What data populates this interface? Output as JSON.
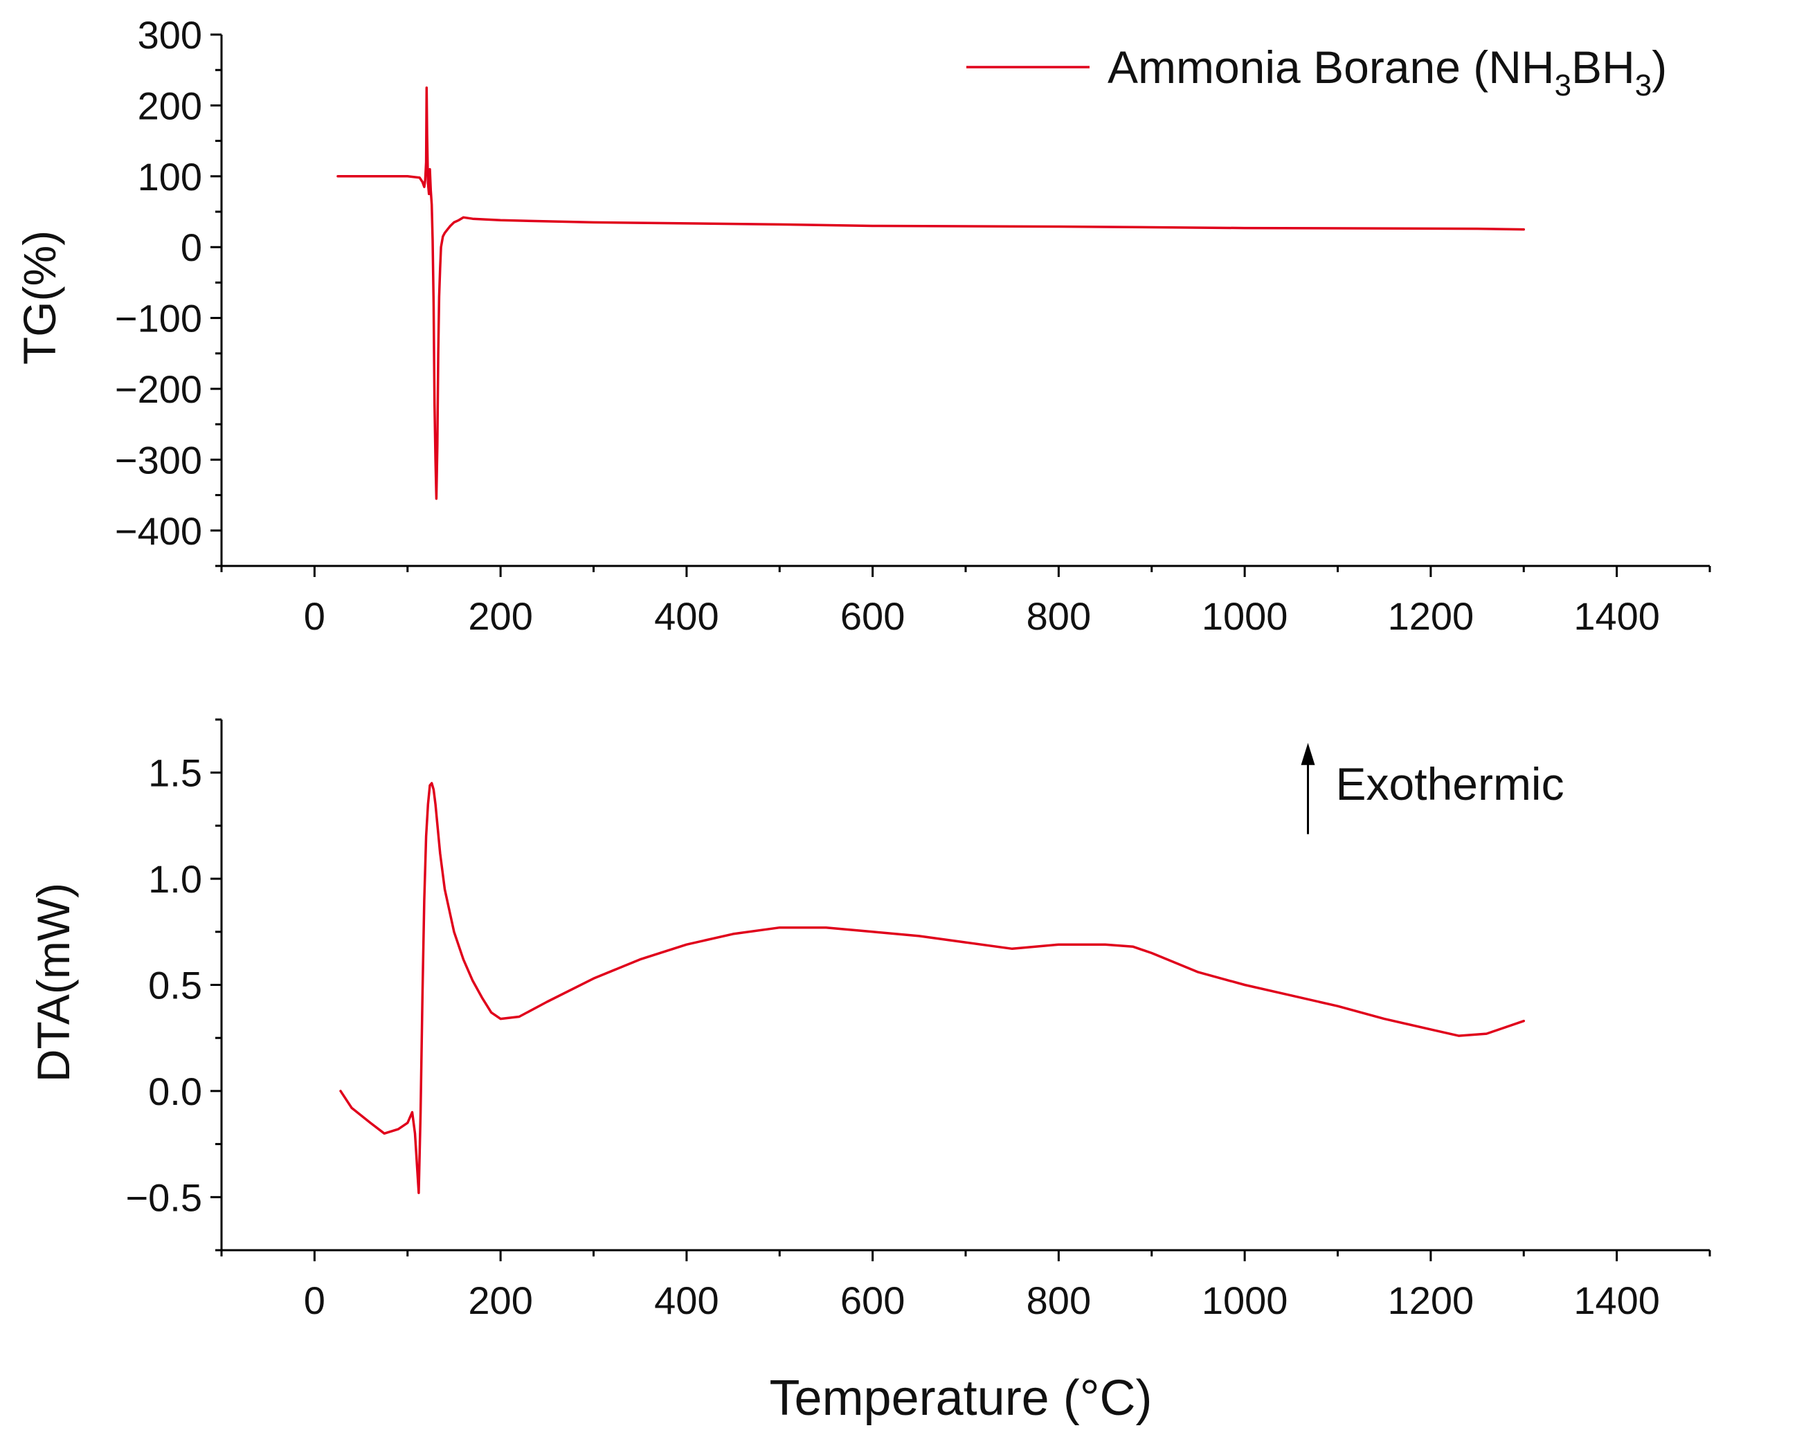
{
  "colors": {
    "series": "#e0001b",
    "axis": "#000000",
    "text": "#111111"
  },
  "chart_data": [
    {
      "type": "line",
      "panel": "top",
      "ylabel": "TG(%)",
      "xlim": [
        -100,
        1500
      ],
      "ylim": [
        -450,
        300
      ],
      "xticks": [
        0,
        200,
        400,
        600,
        800,
        1000,
        1200,
        1400
      ],
      "xtick_labels": [
        "0",
        "200",
        "400",
        "600",
        "800",
        "1000",
        "1200",
        "1400"
      ],
      "xminor": [
        -100,
        100,
        300,
        500,
        700,
        900,
        1100,
        1300,
        1500
      ],
      "yticks": [
        -400,
        -300,
        -200,
        -100,
        0,
        100,
        200,
        300
      ],
      "ytick_labels": [
        "−400",
        "−300",
        "−200",
        "−100",
        "0",
        "100",
        "200",
        "300"
      ],
      "yminor": [
        -450,
        -350,
        -250,
        -150,
        -50,
        50,
        150,
        250
      ],
      "legend_position": "top-right",
      "series": [
        {
          "name_main": "Ammonia Borane (NH",
          "name_sub1": "3",
          "name_mid": "BH",
          "name_sub2": "3",
          "name_end": ")",
          "x": [
            25,
            100,
            113,
            116,
            118,
            119,
            120,
            120.5,
            121,
            122,
            123,
            124,
            125,
            126,
            127,
            128,
            129,
            130,
            131,
            132,
            133,
            134,
            135,
            136,
            138,
            140,
            143,
            146,
            150,
            155,
            160,
            170,
            200,
            300,
            500,
            600,
            800,
            900,
            1000,
            1250,
            1300
          ],
          "y": [
            100,
            100,
            98,
            92,
            85,
            95,
            120,
            225,
            160,
            90,
            75,
            110,
            80,
            60,
            10,
            -80,
            -220,
            -300,
            -355,
            -280,
            -150,
            -70,
            -30,
            0,
            15,
            20,
            25,
            30,
            35,
            38,
            42,
            40,
            38,
            35,
            32,
            30,
            29,
            28,
            27,
            26,
            25
          ]
        }
      ]
    },
    {
      "type": "line",
      "panel": "bottom",
      "xlabel": "Temperature (°C)",
      "ylabel": "DTA(mW)",
      "xlim": [
        -100,
        1500
      ],
      "ylim": [
        -0.75,
        1.75
      ],
      "xticks": [
        0,
        200,
        400,
        600,
        800,
        1000,
        1200,
        1400
      ],
      "xtick_labels": [
        "0",
        "200",
        "400",
        "600",
        "800",
        "1000",
        "1200",
        "1400"
      ],
      "xminor": [
        -100,
        100,
        300,
        500,
        700,
        900,
        1100,
        1300,
        1500
      ],
      "yticks": [
        -0.5,
        0.0,
        0.5,
        1.0,
        1.5
      ],
      "ytick_labels": [
        "−0.5",
        "0.0",
        "0.5",
        "1.0",
        "1.5"
      ],
      "yminor": [
        -0.75,
        -0.25,
        0.25,
        0.75,
        1.25,
        1.75
      ],
      "annotation": {
        "text": "Exothermic",
        "x": 1068,
        "y_from": 1.21,
        "y_to": 1.64
      },
      "series": [
        {
          "x": [
            28,
            40,
            60,
            75,
            90,
            100,
            105,
            108,
            112,
            114,
            116,
            118,
            120,
            122,
            124,
            126,
            128,
            130,
            135,
            140,
            150,
            160,
            170,
            180,
            190,
            200,
            220,
            250,
            300,
            350,
            400,
            450,
            500,
            550,
            600,
            650,
            700,
            750,
            800,
            850,
            880,
            900,
            950,
            1000,
            1050,
            1100,
            1150,
            1200,
            1230,
            1260,
            1300
          ],
          "y": [
            0.0,
            -0.08,
            -0.15,
            -0.2,
            -0.18,
            -0.15,
            -0.1,
            -0.2,
            -0.48,
            -0.1,
            0.45,
            0.9,
            1.2,
            1.35,
            1.44,
            1.45,
            1.42,
            1.35,
            1.12,
            0.95,
            0.75,
            0.62,
            0.52,
            0.44,
            0.37,
            0.34,
            0.35,
            0.42,
            0.53,
            0.62,
            0.69,
            0.74,
            0.77,
            0.77,
            0.75,
            0.73,
            0.7,
            0.67,
            0.69,
            0.69,
            0.68,
            0.65,
            0.56,
            0.5,
            0.45,
            0.4,
            0.34,
            0.29,
            0.26,
            0.27,
            0.33
          ]
        }
      ]
    }
  ]
}
